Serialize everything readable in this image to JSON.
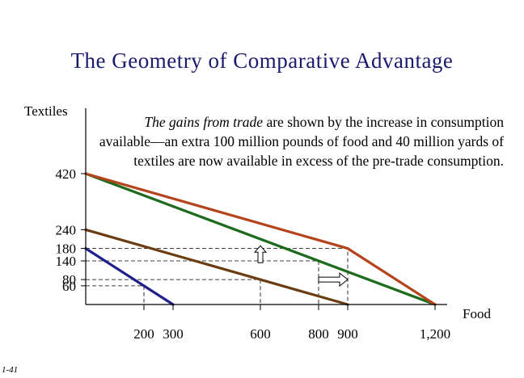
{
  "slide": {
    "title": "The Geometry of Comparative Advantage",
    "annotation_italic": "The gains from trade",
    "annotation_rest": " are shown by the increase in consumption available—an extra 100 million pounds of food and 40 million yards of textiles are now available in excess of the pre-trade consumption.",
    "slide_number": "1-41"
  },
  "chart_data": {
    "type": "line",
    "title": "The Geometry of Comparative Advantage",
    "xlabel": "Food",
    "ylabel": "Textiles",
    "x_ticks": [
      200,
      300,
      600,
      800,
      900,
      1200
    ],
    "x_tick_labels": [
      "200",
      "300",
      "600",
      "800",
      "900",
      "1,200"
    ],
    "y_ticks": [
      60,
      80,
      140,
      180,
      240,
      420
    ],
    "y_tick_labels": [
      "60",
      "80",
      "140",
      "180",
      "240",
      "420"
    ],
    "xlim": [
      0,
      1200
    ],
    "ylim": [
      0,
      420
    ],
    "grid": false,
    "series": [
      {
        "color": "#1f1f8c",
        "points": [
          [
            0,
            180
          ],
          [
            300,
            0
          ]
        ]
      },
      {
        "color": "#6b3d12",
        "points": [
          [
            0,
            240
          ],
          [
            900,
            0
          ]
        ]
      },
      {
        "color": "#1e6b1e",
        "points": [
          [
            0,
            420
          ],
          [
            1200,
            0
          ]
        ]
      },
      {
        "color": "#b5441c",
        "points": [
          [
            0,
            420
          ],
          [
            900,
            180
          ],
          [
            1200,
            0
          ]
        ]
      }
    ],
    "reference_lines": [
      {
        "points": [
          [
            0,
            180
          ],
          [
            900,
            180
          ],
          [
            900,
            0
          ]
        ]
      },
      {
        "points": [
          [
            0,
            140
          ],
          [
            800,
            140
          ],
          [
            800,
            0
          ]
        ]
      },
      {
        "points": [
          [
            0,
            80
          ],
          [
            600,
            80
          ],
          [
            600,
            0
          ]
        ]
      },
      {
        "points": [
          [
            0,
            60
          ],
          [
            200,
            60
          ],
          [
            200,
            0
          ]
        ]
      }
    ],
    "arrows": [
      {
        "direction": "up",
        "at": [
          600,
          160
        ]
      },
      {
        "direction": "right",
        "at": [
          850,
          80
        ]
      }
    ],
    "colors": {
      "axis": "#000000",
      "reference": "#000000",
      "arrow_fill": "#ffffff"
    }
  }
}
